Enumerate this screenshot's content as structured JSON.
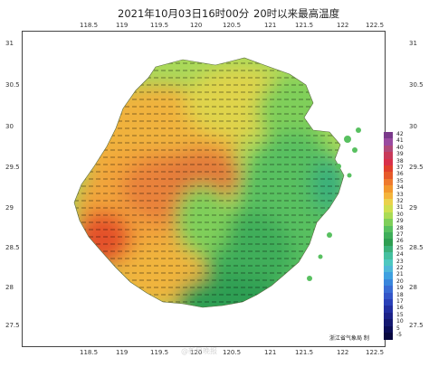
{
  "header": {
    "title": "2021年10月03日16时00分",
    "subtitle": "20时以来最高温度"
  },
  "axes": {
    "lon_top": [
      "118.5",
      "119",
      "119.5",
      "120",
      "120.5",
      "121",
      "121.5",
      "122",
      "122.5"
    ],
    "lon_bottom": [
      "118.5",
      "119",
      "119.5",
      "120",
      "120.5",
      "121",
      "121.5",
      "122",
      "122.5"
    ],
    "lat_left": [
      "31",
      "30.5",
      "30",
      "29.5",
      "29",
      "28.5",
      "28",
      "27.5"
    ],
    "lat_right": [
      "31",
      "30.5",
      "30",
      "29.5",
      "29",
      "28.5",
      "28",
      "27.5"
    ]
  },
  "legend": {
    "labels": [
      "42",
      "41",
      "40",
      "39",
      "38",
      "37",
      "36",
      "35",
      "34",
      "33",
      "32",
      "31",
      "30",
      "29",
      "28",
      "27",
      "26",
      "25",
      "24",
      "23",
      "22",
      "21",
      "20",
      "19",
      "18",
      "17",
      "16",
      "15",
      "10",
      "5",
      "-5"
    ],
    "colors": [
      "#7a3a8a",
      "#9a4aa0",
      "#b04a7a",
      "#c83a5a",
      "#d8304a",
      "#e0402c",
      "#e65a2a",
      "#ee7a2e",
      "#f2982e",
      "#f4b43c",
      "#ead24c",
      "#cfdf50",
      "#aadb55",
      "#7fcf5a",
      "#58c060",
      "#3fae5a",
      "#2f9e52",
      "#3bb07a",
      "#45c0a0",
      "#4ec8c0",
      "#4fb8d8",
      "#3fa0e0",
      "#3a86dc",
      "#3a6cd4",
      "#3456c8",
      "#2a40b8",
      "#222ea0",
      "#1c2288",
      "#141870",
      "#0c0e58",
      "#080840"
    ]
  },
  "credit": "浙江省气象局 制",
  "watermark": "@新民晚报",
  "map_icons": {
    "region": "zhejiang-temperature-field"
  }
}
